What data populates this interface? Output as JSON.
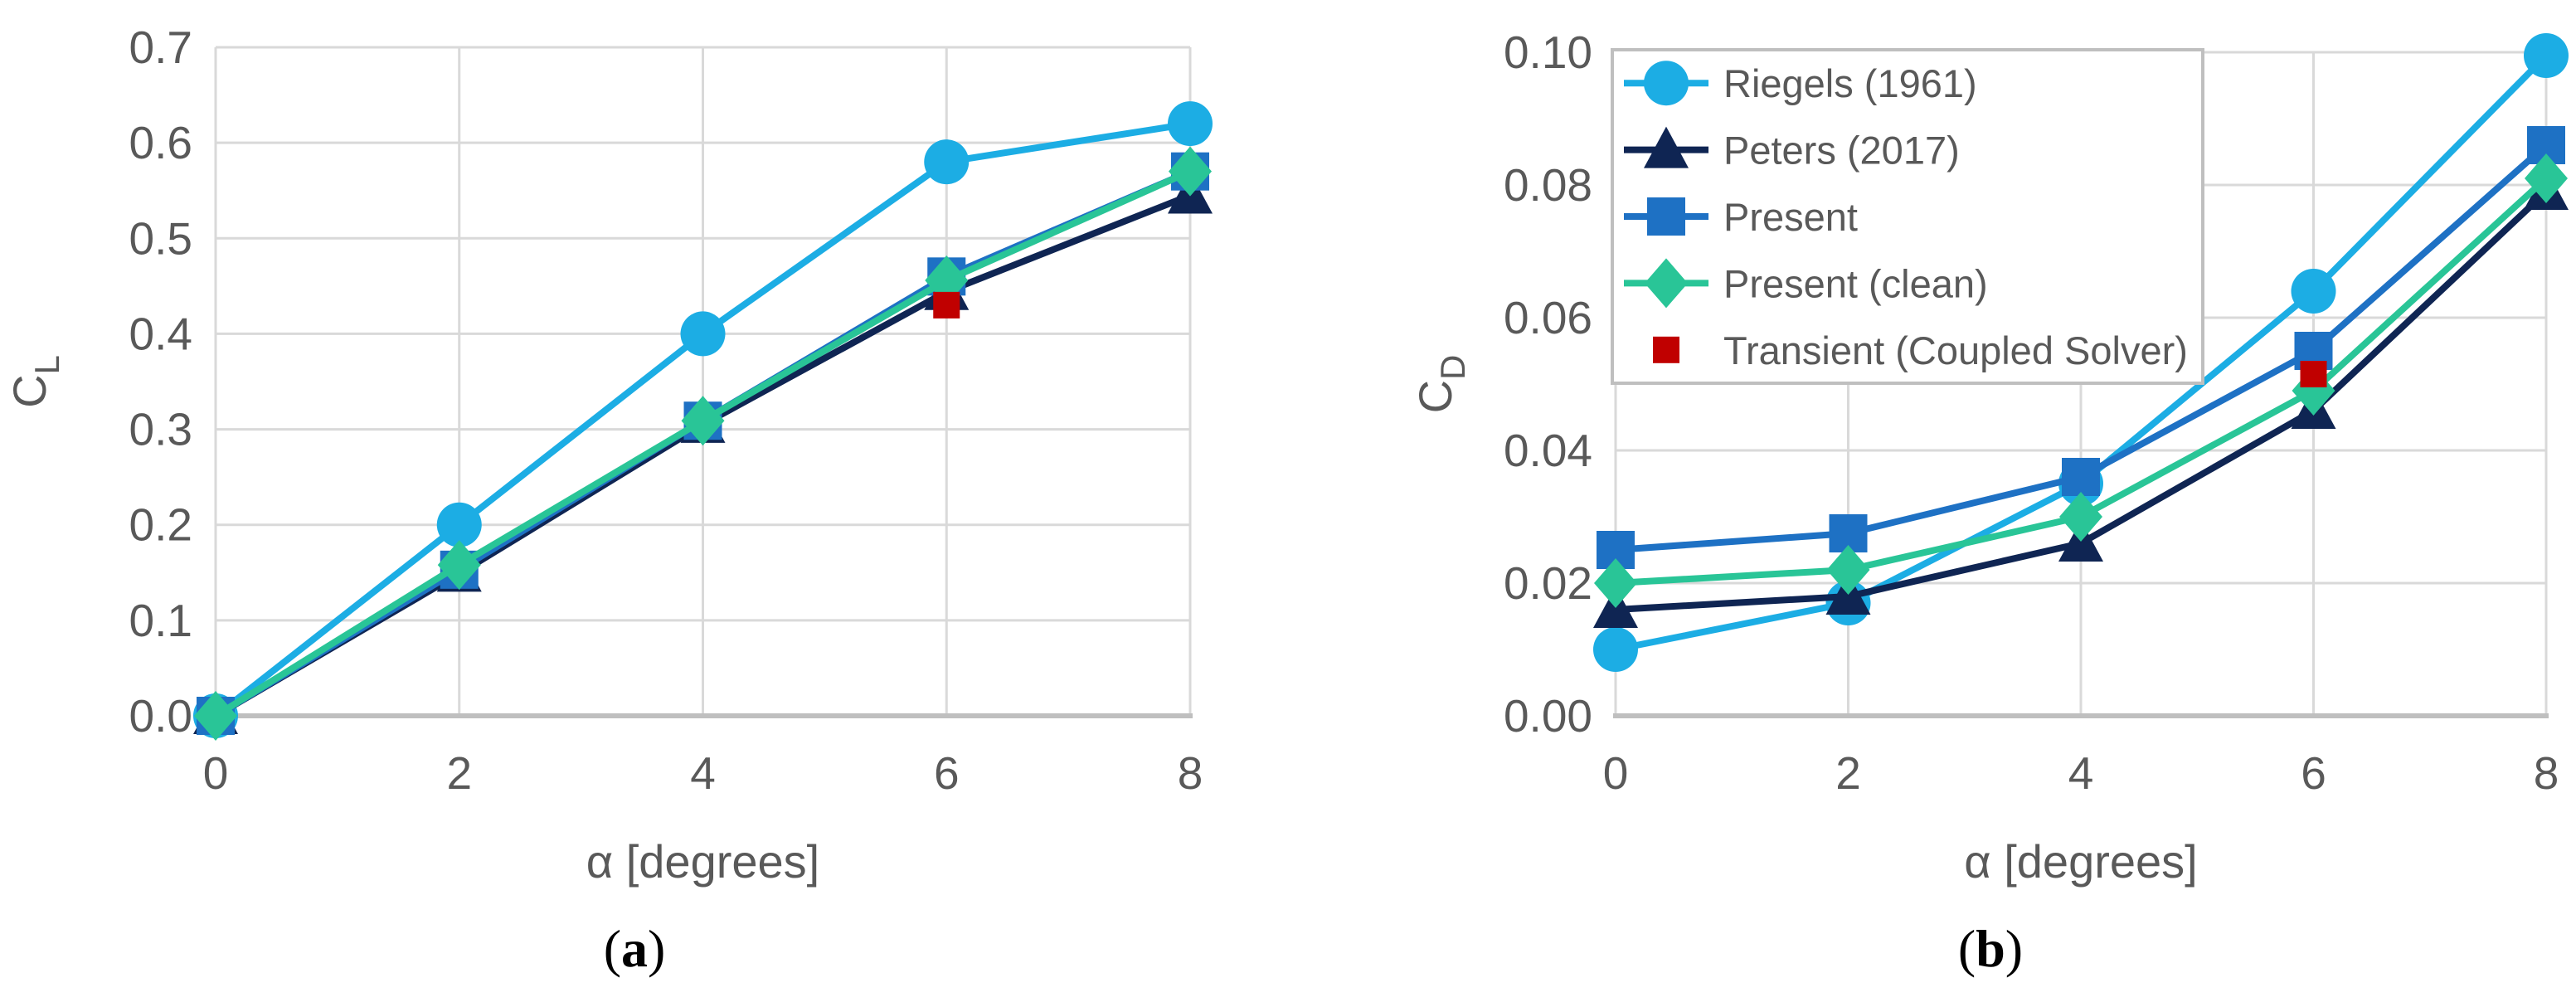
{
  "figure": {
    "description": "Two-panel line chart figure comparing lift and drag coefficients versus angle of attack",
    "background": "#FFFFFF"
  },
  "styles": {
    "grid_color": "#D9D9D9",
    "axis_color": "#BFBFBF",
    "tick_text_color": "#595959",
    "label_text_color": "#595959",
    "legend_text_color": "#595959",
    "legend_border_color": "#BFBFBF",
    "legend_background": "#FFFFFF",
    "caption_color": "#000000"
  },
  "chart_data": [
    {
      "id": "a",
      "type": "line",
      "caption_prefix": "(",
      "caption_letter": "a",
      "caption_suffix": ")",
      "xlabel": "α [degrees]",
      "ylabel_main": "C",
      "ylabel_sub": "L",
      "x": [
        0,
        2,
        4,
        6,
        8
      ],
      "xlim": [
        0,
        8
      ],
      "xtick_step": 2,
      "ylim": [
        0,
        0.7
      ],
      "ytick_step": 0.1,
      "y_decimals": 1,
      "grid": true,
      "legend": null,
      "series": [
        {
          "name": "Riegels (1961)",
          "color": "#1CADE4",
          "marker": "circle",
          "line": true,
          "values": [
            0.0,
            0.2,
            0.4,
            0.58,
            0.62
          ]
        },
        {
          "name": "Peters (2017)",
          "color": "#0F2553",
          "marker": "triangle",
          "line": true,
          "values": [
            0.0,
            0.149,
            0.305,
            0.444,
            0.545
          ]
        },
        {
          "name": "Present",
          "color": "#1E71C4",
          "marker": "square",
          "line": true,
          "values": [
            0.0,
            0.153,
            0.309,
            0.46,
            0.57
          ]
        },
        {
          "name": "Present (clean)",
          "color": "#29C597",
          "marker": "diamond",
          "line": true,
          "values": [
            0.0,
            0.158,
            0.309,
            0.456,
            0.57
          ]
        },
        {
          "name": "Transient (Coupled Solver)",
          "color": "#C00000",
          "marker": "small-square",
          "line": false,
          "points": [
            [
              6,
              0.43
            ]
          ]
        }
      ]
    },
    {
      "id": "b",
      "type": "line",
      "caption_prefix": "(",
      "caption_letter": "b",
      "caption_suffix": ")",
      "xlabel": "α [degrees]",
      "ylabel_main": "C",
      "ylabel_sub": "D",
      "x": [
        0,
        2,
        4,
        6,
        8
      ],
      "xlim": [
        0,
        8
      ],
      "xtick_step": 2,
      "ylim": [
        0,
        0.1
      ],
      "ytick_step": 0.02,
      "y_decimals": 2,
      "grid": true,
      "legend": {
        "position": "top-left"
      },
      "series": [
        {
          "name": "Riegels (1961)",
          "color": "#1CADE4",
          "marker": "circle",
          "line": true,
          "values": [
            0.01,
            0.017,
            0.035,
            0.064,
            0.0995
          ]
        },
        {
          "name": "Peters (2017)",
          "color": "#0F2553",
          "marker": "triangle",
          "line": true,
          "values": [
            0.016,
            0.018,
            0.026,
            0.046,
            0.079
          ]
        },
        {
          "name": "Present",
          "color": "#1E71C4",
          "marker": "square",
          "line": true,
          "values": [
            0.025,
            0.0275,
            0.036,
            0.055,
            0.086
          ]
        },
        {
          "name": "Present (clean)",
          "color": "#29C597",
          "marker": "diamond",
          "line": true,
          "values": [
            0.02,
            0.022,
            0.03,
            0.049,
            0.081
          ]
        },
        {
          "name": "Transient (Coupled Solver)",
          "color": "#C00000",
          "marker": "small-square",
          "line": false,
          "points": [
            [
              6,
              0.0515
            ]
          ]
        }
      ]
    }
  ]
}
